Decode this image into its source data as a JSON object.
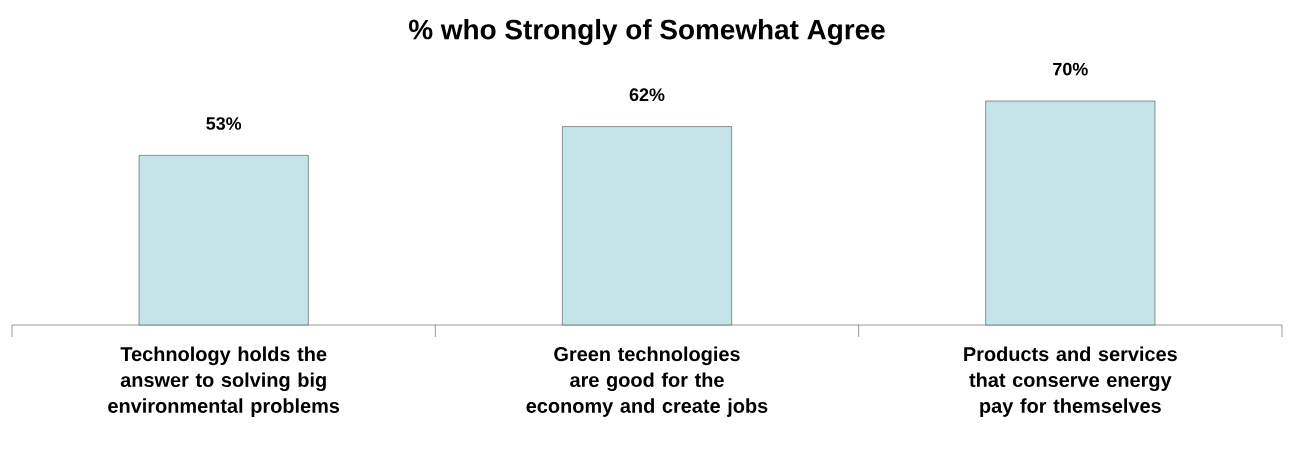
{
  "chart_data": {
    "type": "bar",
    "title": "%  who Strongly of Somewhat Agree",
    "categories": [
      "Technology holds the answer to solving big environmental problems",
      "Green technologies are good for the economy and create jobs",
      "Products and services that conserve energy pay for themselves"
    ],
    "values": [
      53,
      62,
      70
    ],
    "value_labels": [
      "53%",
      "62%",
      "70%"
    ],
    "color": "#c4e4e7"
  }
}
